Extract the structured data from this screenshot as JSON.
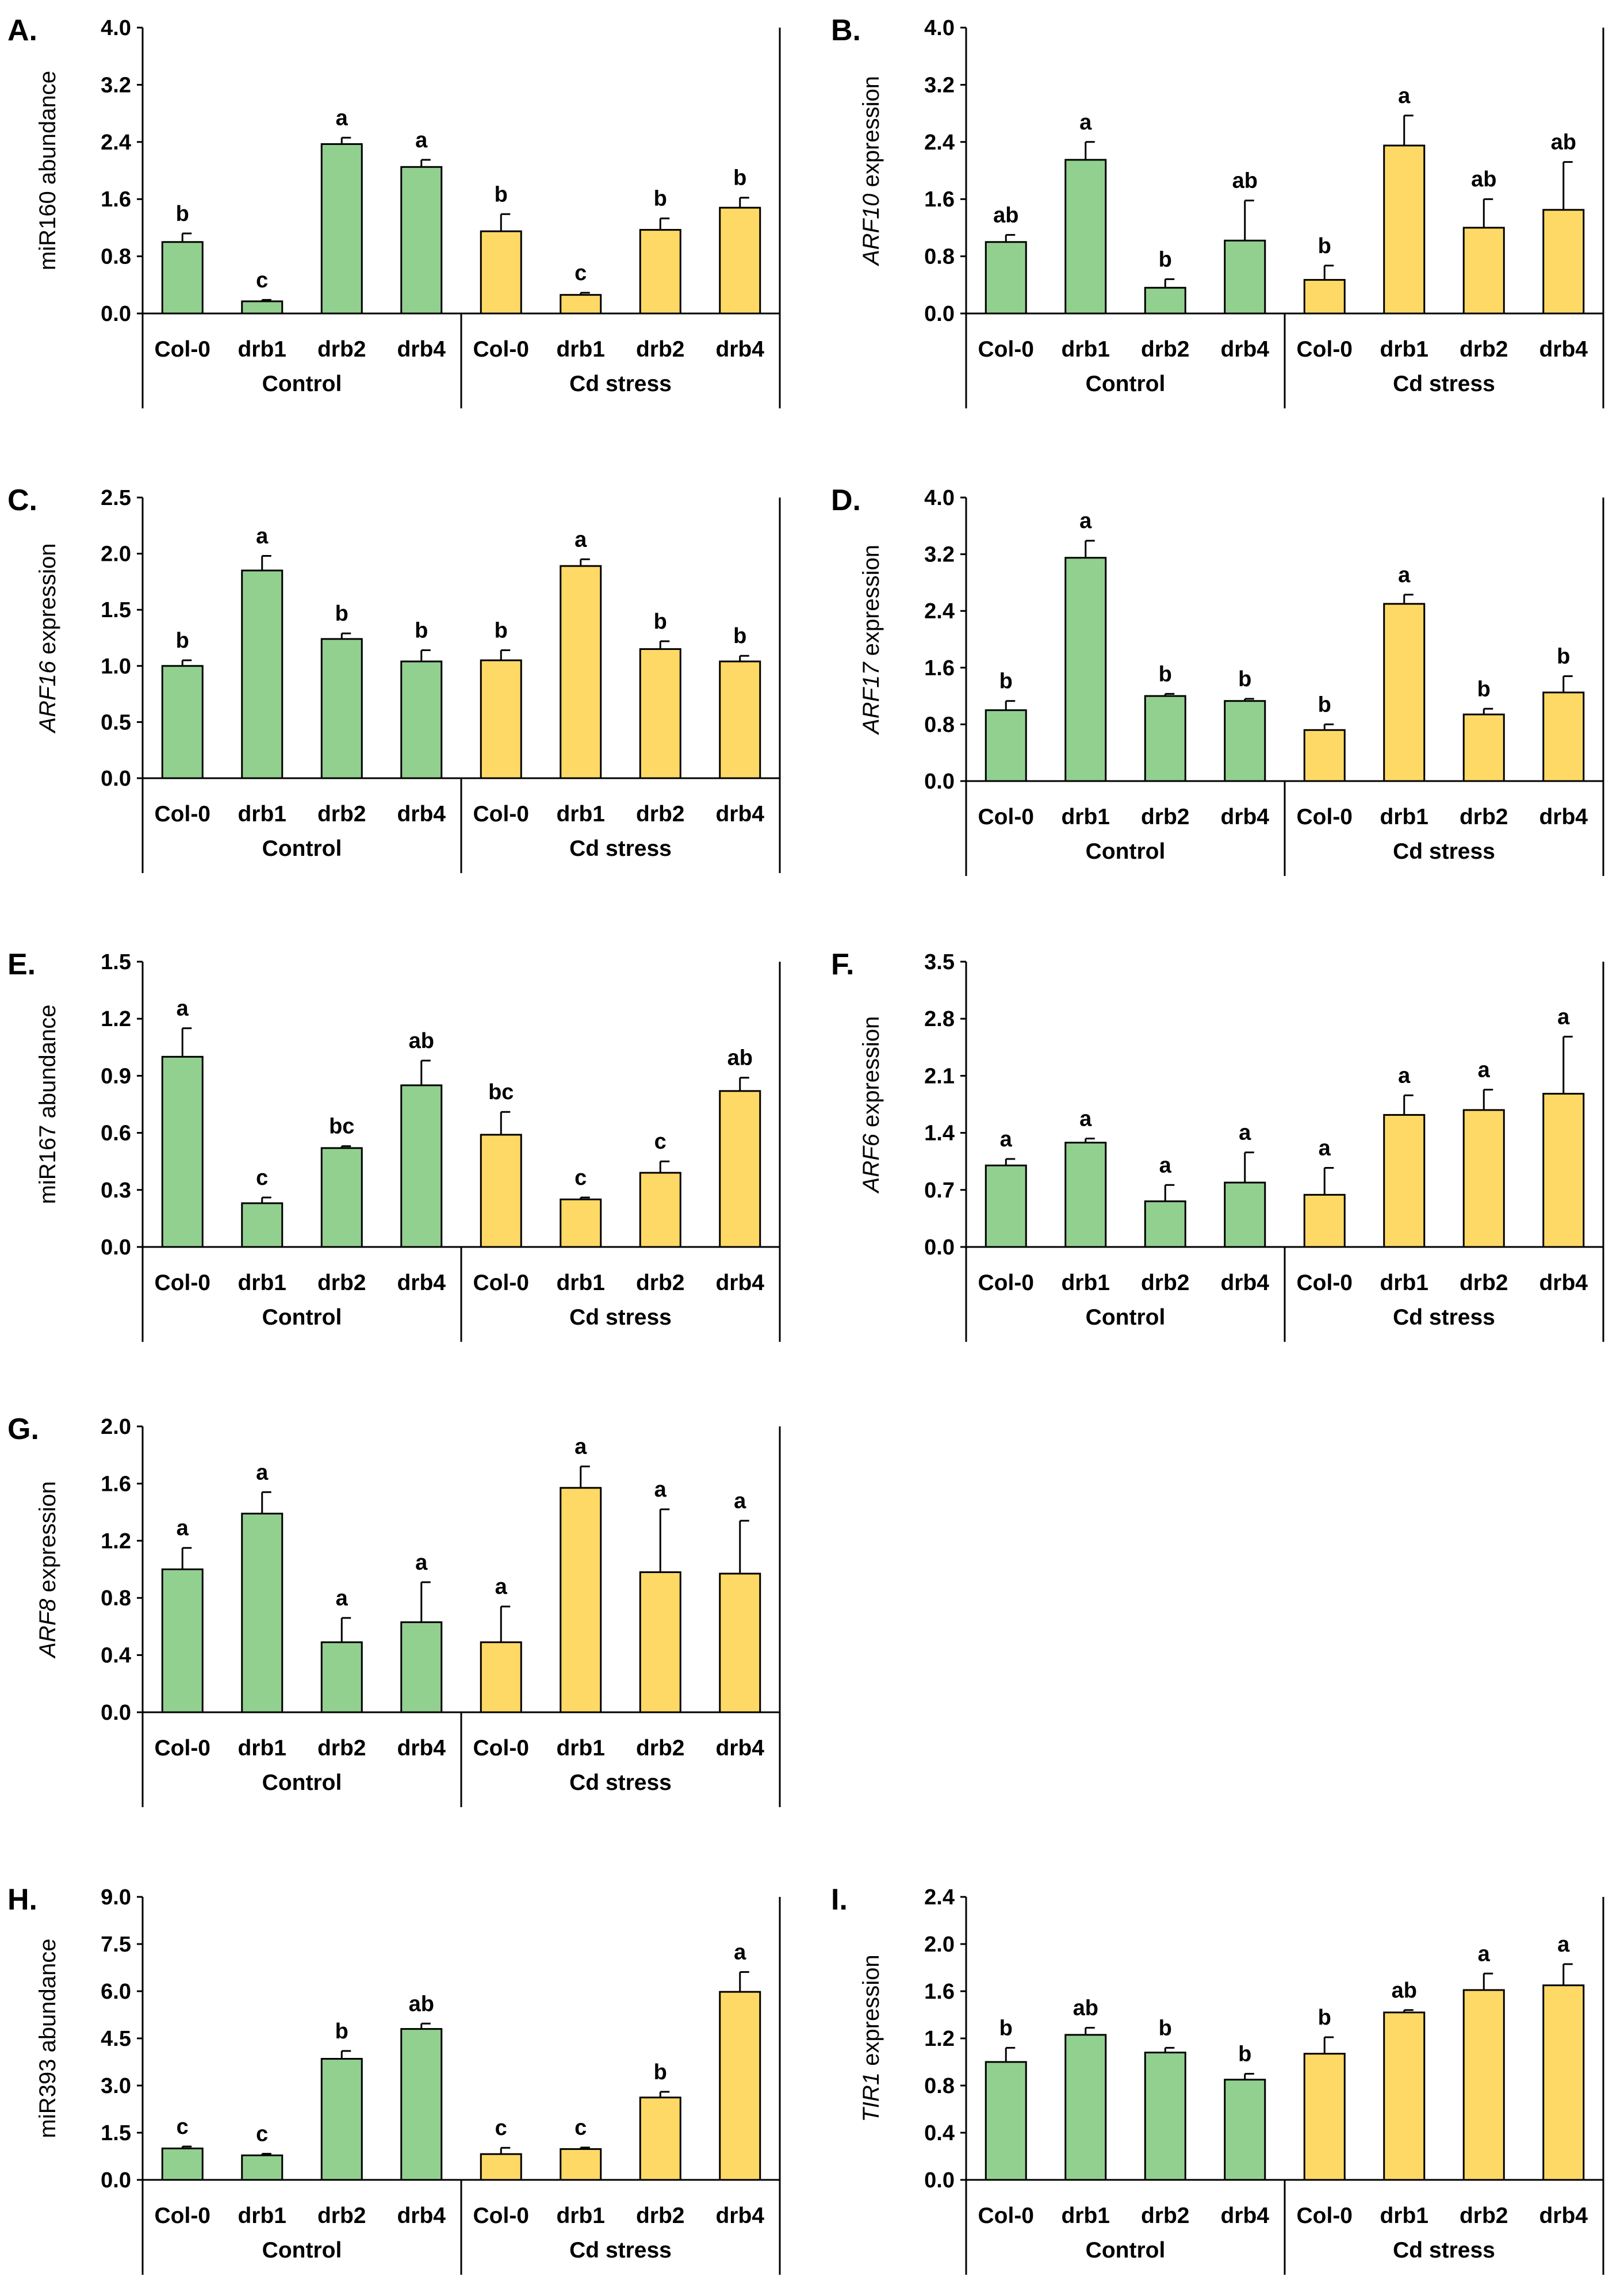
{
  "colors": {
    "control": "#92D08F",
    "cd_stress": "#FFD966",
    "stroke": "#000000"
  },
  "chart_data": [
    {
      "type": "bar",
      "letter": "A.",
      "ylabel_italic": "",
      "ylabel_rest": "miR160 abundance",
      "ylim": [
        0,
        4.0
      ],
      "yticks": [
        "0.0",
        "0.8",
        "1.6",
        "2.4",
        "3.2",
        "4.0"
      ],
      "categories": [
        "Col-0",
        "drb1",
        "drb2",
        "drb4",
        "Col-0",
        "drb1",
        "drb2",
        "drb4"
      ],
      "groups": [
        "Control",
        "Cd stress"
      ],
      "values": [
        1.0,
        0.17,
        2.37,
        2.05,
        1.15,
        0.26,
        1.17,
        1.48
      ],
      "errors": [
        0.12,
        0.02,
        0.09,
        0.1,
        0.24,
        0.03,
        0.16,
        0.14
      ],
      "sig": [
        "b",
        "c",
        "a",
        "a",
        "b",
        "c",
        "b",
        "b"
      ]
    },
    {
      "type": "bar",
      "letter": "B.",
      "ylabel_italic": "ARF10",
      "ylabel_rest": " expression",
      "ylim": [
        0,
        4.0
      ],
      "yticks": [
        "0.0",
        "0.8",
        "1.6",
        "2.4",
        "3.2",
        "4.0"
      ],
      "categories": [
        "Col-0",
        "drb1",
        "drb2",
        "drb4",
        "Col-0",
        "drb1",
        "drb2",
        "drb4"
      ],
      "groups": [
        "Control",
        "Cd stress"
      ],
      "values": [
        1.0,
        2.15,
        0.36,
        1.02,
        0.47,
        2.35,
        1.2,
        1.45
      ],
      "errors": [
        0.1,
        0.25,
        0.12,
        0.56,
        0.2,
        0.42,
        0.4,
        0.67
      ],
      "sig": [
        "ab",
        "a",
        "b",
        "ab",
        "b",
        "a",
        "ab",
        "ab"
      ]
    },
    {
      "type": "bar",
      "letter": "C.",
      "ylabel_italic": "ARF16",
      "ylabel_rest": " expression",
      "ylim": [
        0,
        2.5
      ],
      "yticks": [
        "0.0",
        "0.5",
        "1.0",
        "1.5",
        "2.0",
        "2.5"
      ],
      "categories": [
        "Col-0",
        "drb1",
        "drb2",
        "drb4",
        "Col-0",
        "drb1",
        "drb2",
        "drb4"
      ],
      "groups": [
        "Control",
        "Cd stress"
      ],
      "values": [
        1.0,
        1.85,
        1.24,
        1.04,
        1.05,
        1.89,
        1.15,
        1.04
      ],
      "errors": [
        0.05,
        0.13,
        0.05,
        0.1,
        0.09,
        0.06,
        0.07,
        0.05
      ],
      "sig": [
        "b",
        "a",
        "b",
        "b",
        "b",
        "a",
        "b",
        "b"
      ]
    },
    {
      "type": "bar",
      "letter": "D.",
      "ylabel_italic": "ARF17",
      "ylabel_rest": " expression",
      "ylim": [
        0,
        4.0
      ],
      "yticks": [
        "0.0",
        "0.8",
        "1.6",
        "2.4",
        "3.2",
        "4.0"
      ],
      "categories": [
        "Col-0",
        "drb1",
        "drb2",
        "drb4",
        "Col-0",
        "drb1",
        "drb2",
        "drb4"
      ],
      "groups": [
        "Control",
        "Cd stress"
      ],
      "values": [
        1.0,
        3.15,
        1.2,
        1.13,
        0.72,
        2.5,
        0.94,
        1.25
      ],
      "errors": [
        0.13,
        0.24,
        0.03,
        0.03,
        0.08,
        0.13,
        0.08,
        0.23
      ],
      "sig": [
        "b",
        "a",
        "b",
        "b",
        "b",
        "a",
        "b",
        "b"
      ]
    },
    {
      "type": "bar",
      "letter": "E.",
      "ylabel_italic": "",
      "ylabel_rest": "miR167 abundance",
      "ylim": [
        0,
        1.5
      ],
      "yticks": [
        "0.0",
        "0.3",
        "0.6",
        "0.9",
        "1.2",
        "1.5"
      ],
      "categories": [
        "Col-0",
        "drb1",
        "drb2",
        "drb4",
        "Col-0",
        "drb1",
        "drb2",
        "drb4"
      ],
      "groups": [
        "Control",
        "Cd stress"
      ],
      "values": [
        1.0,
        0.23,
        0.52,
        0.85,
        0.59,
        0.25,
        0.39,
        0.82
      ],
      "errors": [
        0.15,
        0.03,
        0.01,
        0.13,
        0.12,
        0.01,
        0.06,
        0.07
      ],
      "sig": [
        "a",
        "c",
        "bc",
        "ab",
        "bc",
        "c",
        "c",
        "ab"
      ]
    },
    {
      "type": "bar",
      "letter": "F.",
      "ylabel_italic": "ARF6",
      "ylabel_rest": " expression",
      "ylim": [
        0,
        3.5
      ],
      "yticks": [
        "0.0",
        "0.7",
        "1.4",
        "2.1",
        "2.8",
        "3.5"
      ],
      "categories": [
        "Col-0",
        "drb1",
        "drb2",
        "drb4",
        "Col-0",
        "drb1",
        "drb2",
        "drb4"
      ],
      "groups": [
        "Control",
        "Cd stress"
      ],
      "values": [
        1.0,
        1.28,
        0.56,
        0.79,
        0.64,
        1.62,
        1.68,
        1.88
      ],
      "errors": [
        0.08,
        0.05,
        0.2,
        0.37,
        0.33,
        0.24,
        0.25,
        0.7
      ],
      "sig": [
        "a",
        "a",
        "a",
        "a",
        "a",
        "a",
        "a",
        "a"
      ]
    },
    {
      "type": "bar",
      "letter": "G.",
      "ylabel_italic": "ARF8",
      "ylabel_rest": " expression",
      "ylim": [
        0,
        2.0
      ],
      "yticks": [
        "0.0",
        "0.4",
        "0.8",
        "1.2",
        "1.6",
        "2.0"
      ],
      "categories": [
        "Col-0",
        "drb1",
        "drb2",
        "drb4",
        "Col-0",
        "drb1",
        "drb2",
        "drb4"
      ],
      "groups": [
        "Control",
        "Cd stress"
      ],
      "values": [
        1.0,
        1.39,
        0.49,
        0.63,
        0.49,
        1.57,
        0.98,
        0.97
      ],
      "errors": [
        0.15,
        0.15,
        0.17,
        0.28,
        0.25,
        0.15,
        0.44,
        0.37
      ],
      "sig": [
        "a",
        "a",
        "a",
        "a",
        "a",
        "a",
        "a",
        "a"
      ]
    },
    {
      "type": "bar",
      "letter": "H.",
      "ylabel_italic": "",
      "ylabel_rest": "miR393 abundance",
      "ylim": [
        0,
        9.0
      ],
      "yticks": [
        "0.0",
        "1.5",
        "3.0",
        "4.5",
        "6.0",
        "7.5",
        "9.0"
      ],
      "categories": [
        "Col-0",
        "drb1",
        "drb2",
        "drb4",
        "Col-0",
        "drb1",
        "drb2",
        "drb4"
      ],
      "groups": [
        "Control",
        "Cd stress"
      ],
      "values": [
        1.0,
        0.78,
        3.85,
        4.8,
        0.82,
        0.98,
        2.62,
        5.98
      ],
      "errors": [
        0.06,
        0.05,
        0.25,
        0.17,
        0.2,
        0.05,
        0.18,
        0.63
      ],
      "sig": [
        "c",
        "c",
        "b",
        "ab",
        "c",
        "c",
        "b",
        "a"
      ]
    },
    {
      "type": "bar",
      "letter": "I.",
      "ylabel_italic": "TIR1",
      "ylabel_rest": " expression",
      "ylim": [
        0,
        2.4
      ],
      "yticks": [
        "0.0",
        "0.4",
        "0.8",
        "1.2",
        "1.6",
        "2.0",
        "2.4"
      ],
      "categories": [
        "Col-0",
        "drb1",
        "drb2",
        "drb4",
        "Col-0",
        "drb1",
        "drb2",
        "drb4"
      ],
      "groups": [
        "Control",
        "Cd stress"
      ],
      "values": [
        1.0,
        1.23,
        1.08,
        0.85,
        1.07,
        1.42,
        1.61,
        1.65
      ],
      "errors": [
        0.12,
        0.06,
        0.04,
        0.05,
        0.14,
        0.02,
        0.14,
        0.18
      ],
      "sig": [
        "b",
        "ab",
        "b",
        "b",
        "b",
        "ab",
        "a",
        "a"
      ]
    }
  ]
}
